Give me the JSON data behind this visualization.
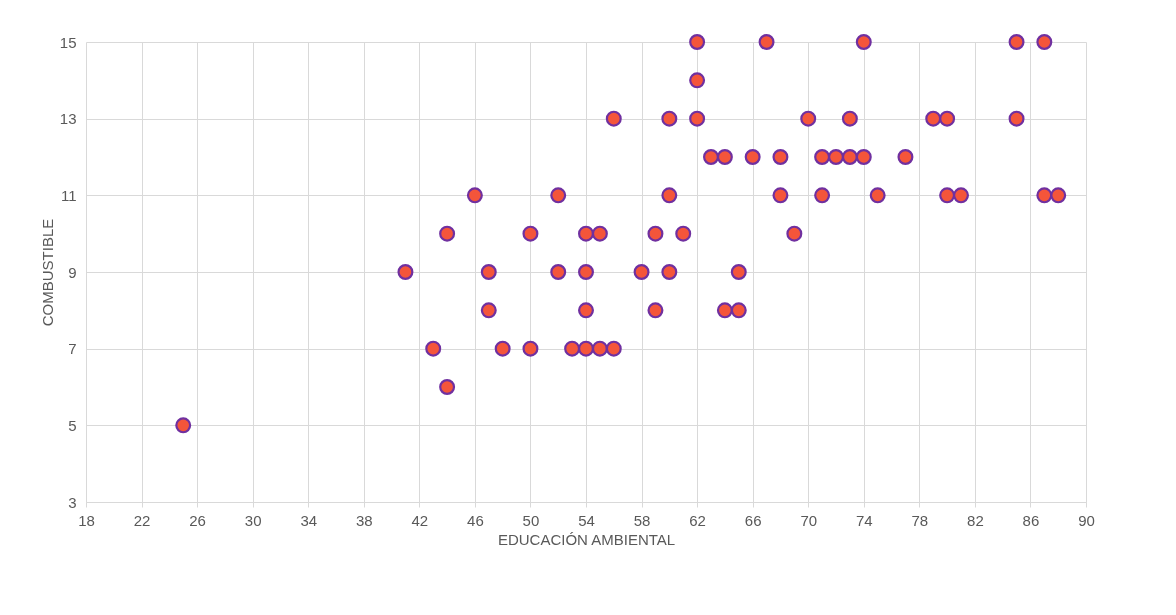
{
  "chart_data": {
    "type": "scatter",
    "xlabel": "EDUCACIÓN AMBIENTAL",
    "ylabel": "COMBUSTIBLE",
    "x": [
      25,
      41,
      43,
      44,
      44,
      46,
      47,
      47,
      48,
      50,
      50,
      52,
      52,
      53,
      54,
      54,
      54,
      54,
      55,
      55,
      56,
      56,
      58,
      59,
      59,
      60,
      60,
      60,
      61,
      62,
      62,
      62,
      63,
      64,
      64,
      65,
      65,
      66,
      67,
      68,
      68,
      69,
      70,
      71,
      71,
      72,
      73,
      73,
      74,
      74,
      75,
      77,
      79,
      80,
      80,
      81,
      85,
      85,
      87,
      87,
      88
    ],
    "series": [
      {
        "color": "#f4553a",
        "values": [
          5,
          9,
          7,
          6,
          10,
          11,
          9,
          8,
          7,
          10,
          7,
          11,
          9,
          7,
          10,
          9,
          8,
          7,
          10,
          7,
          13,
          7,
          9,
          10,
          8,
          13,
          11,
          9,
          10,
          15,
          14,
          13,
          12,
          12,
          8,
          9,
          8,
          12,
          15,
          12,
          11,
          10,
          13,
          12,
          11,
          12,
          13,
          12,
          15,
          12,
          11,
          12,
          13,
          13,
          11,
          11,
          15,
          13,
          15,
          11,
          11
        ]
      }
    ],
    "xlim": [
      18,
      90
    ],
    "xticks": [
      18,
      22,
      26,
      30,
      34,
      38,
      42,
      46,
      50,
      54,
      58,
      62,
      66,
      70,
      74,
      78,
      82,
      86,
      90
    ],
    "ylim": [
      3,
      15
    ],
    "yticks": [
      3,
      5,
      7,
      9,
      11,
      13,
      15
    ],
    "grid": true,
    "marker": "circle",
    "legend": false
  }
}
